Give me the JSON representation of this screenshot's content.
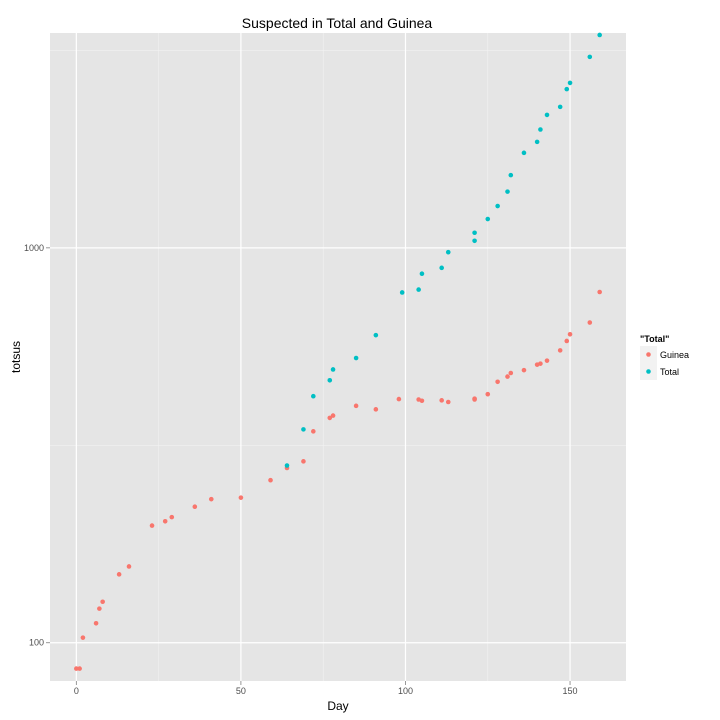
{
  "chart_data": {
    "type": "scatter",
    "title": "Suspected in Total and Guinea",
    "xlabel": "Day",
    "ylabel": "totsus",
    "y_scale": "log10",
    "xlim": [
      -8,
      167
    ],
    "ylim": [
      80,
      3500
    ],
    "x_ticks": [
      0,
      50,
      100,
      150
    ],
    "y_ticks": [
      100,
      1000
    ],
    "x_tick_labels": [
      "0",
      "50",
      "100",
      "150"
    ],
    "y_tick_labels": [
      "100",
      "1000"
    ],
    "grid": true,
    "legend": {
      "title": "\"Total\"",
      "position": "right"
    },
    "series": [
      {
        "name": "Guinea",
        "color": "#F8766D",
        "points": [
          [
            0,
            86
          ],
          [
            1,
            86
          ],
          [
            2,
            103
          ],
          [
            6,
            112
          ],
          [
            7,
            122
          ],
          [
            8,
            127
          ],
          [
            13,
            149
          ],
          [
            16,
            156
          ],
          [
            23,
            198
          ],
          [
            27,
            203
          ],
          [
            29,
            208
          ],
          [
            36,
            221
          ],
          [
            41,
            231
          ],
          [
            50,
            233
          ],
          [
            59,
            258
          ],
          [
            64,
            277
          ],
          [
            69,
            288
          ],
          [
            72,
            343
          ],
          [
            77,
            371
          ],
          [
            78,
            376
          ],
          [
            85,
            398
          ],
          [
            91,
            390
          ],
          [
            98,
            414
          ],
          [
            104,
            413
          ],
          [
            105,
            410
          ],
          [
            111,
            411
          ],
          [
            113,
            407
          ],
          [
            121,
            413
          ],
          [
            121,
            415
          ],
          [
            125,
            426
          ],
          [
            128,
            458
          ],
          [
            131,
            472
          ],
          [
            132,
            482
          ],
          [
            136,
            490
          ],
          [
            140,
            506
          ],
          [
            141,
            509
          ],
          [
            143,
            518
          ],
          [
            147,
            550
          ],
          [
            149,
            581
          ],
          [
            150,
            604
          ],
          [
            156,
            647
          ],
          [
            159,
            773
          ]
        ]
      },
      {
        "name": "Total",
        "color": "#00BFC4",
        "points": [
          [
            64,
            281
          ],
          [
            69,
            347
          ],
          [
            72,
            421
          ],
          [
            77,
            462
          ],
          [
            78,
            492
          ],
          [
            85,
            526
          ],
          [
            91,
            601
          ],
          [
            99,
            771
          ],
          [
            104,
            784
          ],
          [
            105,
            860
          ],
          [
            111,
            890
          ],
          [
            113,
            975
          ],
          [
            121,
            1042
          ],
          [
            121,
            1092
          ],
          [
            125,
            1183
          ],
          [
            128,
            1276
          ],
          [
            131,
            1388
          ],
          [
            132,
            1528
          ],
          [
            136,
            1740
          ],
          [
            140,
            1855
          ],
          [
            141,
            1994
          ],
          [
            143,
            2171
          ],
          [
            147,
            2275
          ],
          [
            149,
            2523
          ],
          [
            150,
            2616
          ],
          [
            156,
            3045
          ],
          [
            159,
            3460
          ]
        ]
      }
    ]
  }
}
